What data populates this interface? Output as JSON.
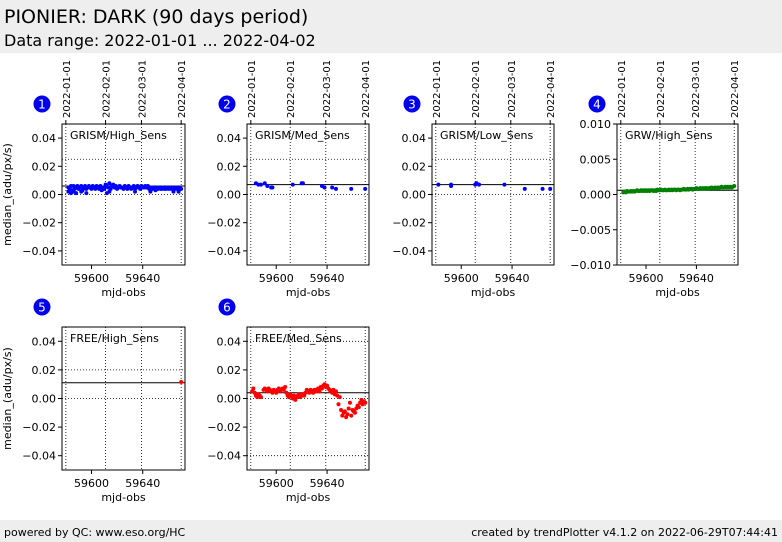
{
  "header": {
    "title": "PIONIER: DARK (90 days period)",
    "subtitle": "Data range: 2022-01-01 ... 2022-04-02"
  },
  "footer": {
    "left": "powered by QC: www.eso.org/HC",
    "right": "created by trendPlotter v4.1.2 on 2022-06-29T07:44:41"
  },
  "colors": {
    "badge": "#0000ee",
    "header_bg": "#eeeeee"
  },
  "chart_data": [
    {
      "type": "scatter",
      "badge": "1",
      "label": "GRISM/High_Sens",
      "color": "#0000ff",
      "xlabel": "mjd-obs",
      "ylabel": "median_(adu/px/s)",
      "xlim": [
        59577,
        59673
      ],
      "ylim": [
        -0.05,
        0.05
      ],
      "yticks": [
        -0.04,
        -0.02,
        0.0,
        0.02,
        0.04
      ],
      "yticklabels": [
        "−0.04",
        "−0.02",
        "0.00",
        "0.02",
        "0.04"
      ],
      "xticks": [
        59600,
        59640
      ],
      "xticklabels": [
        "59600",
        "59640"
      ],
      "dates": [
        "2022-01-01",
        "2022-02-01",
        "2022-03-01",
        "2022-04-01"
      ],
      "ref_line": 0.006,
      "dotted_lines": [
        0.025,
        0.0
      ],
      "x": [
        59582,
        59583,
        59584,
        59585,
        59586,
        59587,
        59588,
        59589,
        59590,
        59591,
        59592,
        59593,
        59594,
        59595,
        59596,
        59597,
        59598,
        59599,
        59600,
        59601,
        59602,
        59603,
        59604,
        59605,
        59606,
        59607,
        59608,
        59609,
        59610,
        59611,
        59612,
        59613,
        59614,
        59615,
        59616,
        59617,
        59618,
        59619,
        59620,
        59621,
        59622,
        59623,
        59624,
        59625,
        59626,
        59627,
        59628,
        59629,
        59630,
        59631,
        59632,
        59633,
        59634,
        59635,
        59636,
        59637,
        59638,
        59639,
        59640,
        59641,
        59642,
        59643,
        59644,
        59645,
        59646,
        59647,
        59648,
        59649,
        59650,
        59651,
        59652,
        59653,
        59654,
        59655,
        59656,
        59657,
        59658,
        59659,
        59660,
        59661,
        59662,
        59663,
        59664,
        59665,
        59666,
        59667,
        59668,
        59669,
        59670,
        59582,
        59584,
        59586,
        59588,
        59592,
        59596,
        59612,
        59614,
        59634,
        59646,
        59664,
        59668
      ],
      "y": [
        0.005,
        0.004,
        0.006,
        0.003,
        0.006,
        0.004,
        0.005,
        0.006,
        0.004,
        0.005,
        0.006,
        0.003,
        0.005,
        0.006,
        0.004,
        0.005,
        0.006,
        0.005,
        0.004,
        0.006,
        0.005,
        0.004,
        0.006,
        0.005,
        0.004,
        0.006,
        0.003,
        0.005,
        0.004,
        0.007,
        0.006,
        0.005,
        0.008,
        0.004,
        0.006,
        0.007,
        0.005,
        0.006,
        0.004,
        0.005,
        0.006,
        0.005,
        0.005,
        0.004,
        0.006,
        0.005,
        0.004,
        0.006,
        0.005,
        0.004,
        0.005,
        0.006,
        0.004,
        0.005,
        0.006,
        0.005,
        0.004,
        0.006,
        0.005,
        0.005,
        0.006,
        0.005,
        0.006,
        0.004,
        0.005,
        0.005,
        0.004,
        0.005,
        0.003,
        0.005,
        0.004,
        0.005,
        0.004,
        0.004,
        0.005,
        0.004,
        0.004,
        0.005,
        0.004,
        0.005,
        0.004,
        0.005,
        0.004,
        0.004,
        0.005,
        0.004,
        0.003,
        0.005,
        0.004,
        0.002,
        0.001,
        0.002,
        0.001,
        0.002,
        0.001,
        0.001,
        0.002,
        0.002,
        0.002,
        0.002,
        0.002
      ]
    },
    {
      "type": "scatter",
      "badge": "2",
      "label": "GRISM/Med_Sens",
      "color": "#0000ff",
      "xlabel": "mjd-obs",
      "ylabel": "",
      "xlim": [
        59577,
        59673
      ],
      "ylim": [
        -0.05,
        0.05
      ],
      "yticks": [
        -0.04,
        -0.02,
        0.0,
        0.02,
        0.04
      ],
      "yticklabels": [
        "−0.04",
        "−0.02",
        "0.00",
        "0.02",
        "0.04"
      ],
      "xticks": [
        59600,
        59640
      ],
      "xticklabels": [
        "59600",
        "59640"
      ],
      "dates": [
        "2022-01-01",
        "2022-02-01",
        "2022-03-01",
        "2022-04-01"
      ],
      "ref_line": 0.007,
      "dotted_lines": [
        0.025,
        0.0
      ],
      "x": [
        59584,
        59586,
        59588,
        59591,
        59593,
        59596,
        59597,
        59613,
        59620,
        59621,
        59636,
        59638,
        59644,
        59647,
        59659,
        59670
      ],
      "y": [
        0.008,
        0.007,
        0.007,
        0.008,
        0.006,
        0.005,
        0.005,
        0.007,
        0.008,
        0.008,
        0.006,
        0.005,
        0.005,
        0.004,
        0.004,
        0.004
      ]
    },
    {
      "type": "scatter",
      "badge": "3",
      "label": "GRISM/Low_Sens",
      "color": "#0000ff",
      "xlabel": "mjd-obs",
      "ylabel": "",
      "xlim": [
        59577,
        59673
      ],
      "ylim": [
        -0.05,
        0.05
      ],
      "yticks": [
        -0.04,
        -0.02,
        0.0,
        0.02,
        0.04
      ],
      "yticklabels": [
        "−0.04",
        "−0.02",
        "0.00",
        "0.02",
        "0.04"
      ],
      "xticks": [
        59600,
        59640
      ],
      "xticklabels": [
        "59600",
        "59640"
      ],
      "dates": [
        "2022-01-01",
        "2022-02-01",
        "2022-03-01",
        "2022-04-01"
      ],
      "ref_line": 0.007,
      "dotted_lines": [
        0.025,
        0.0
      ],
      "x": [
        59582,
        59592,
        59592,
        59611,
        59612,
        59614,
        59634,
        59650,
        59664,
        59670
      ],
      "y": [
        0.007,
        0.007,
        0.006,
        0.007,
        0.008,
        0.007,
        0.007,
        0.004,
        0.004,
        0.004
      ]
    },
    {
      "type": "scatter",
      "badge": "4",
      "label": "GRW/High_Sens",
      "color": "#008000",
      "xlabel": "mjd-obs",
      "ylabel": "",
      "xlim": [
        59577,
        59673
      ],
      "ylim": [
        -0.01,
        0.01
      ],
      "yticks": [
        -0.01,
        -0.005,
        0.0,
        0.005,
        0.01
      ],
      "yticklabels": [
        "−0.010",
        "−0.005",
        "0.000",
        "0.005",
        "0.010"
      ],
      "xticks": [
        59600,
        59640
      ],
      "xticklabels": [
        "59600",
        "59640"
      ],
      "dates": [
        "2022-01-01",
        "2022-02-01",
        "2022-03-01",
        "2022-04-01"
      ],
      "ref_line": 0.0006,
      "dotted_lines": [],
      "x": [
        59582,
        59583,
        59584,
        59585,
        59586,
        59587,
        59588,
        59589,
        59590,
        59591,
        59592,
        59593,
        59594,
        59595,
        59596,
        59597,
        59598,
        59599,
        59600,
        59601,
        59602,
        59603,
        59604,
        59605,
        59606,
        59607,
        59608,
        59609,
        59610,
        59611,
        59612,
        59613,
        59614,
        59615,
        59616,
        59617,
        59618,
        59619,
        59620,
        59621,
        59622,
        59623,
        59624,
        59625,
        59626,
        59627,
        59628,
        59629,
        59630,
        59631,
        59632,
        59633,
        59634,
        59635,
        59636,
        59637,
        59638,
        59639,
        59640,
        59641,
        59642,
        59643,
        59644,
        59645,
        59646,
        59647,
        59648,
        59649,
        59650,
        59651,
        59652,
        59653,
        59654,
        59655,
        59656,
        59657,
        59658,
        59659,
        59660,
        59661,
        59662,
        59663,
        59664,
        59665,
        59666,
        59667,
        59668,
        59669,
        59670
      ],
      "y": [
        0.0003,
        0.0004,
        0.0003,
        0.0005,
        0.0004,
        0.0004,
        0.0005,
        0.0004,
        0.0005,
        0.0004,
        0.0005,
        0.0006,
        0.0005,
        0.0005,
        0.0006,
        0.0005,
        0.0006,
        0.0005,
        0.0006,
        0.0005,
        0.0006,
        0.0005,
        0.0006,
        0.0006,
        0.0005,
        0.0006,
        0.0005,
        0.0007,
        0.0006,
        0.0006,
        0.0007,
        0.0006,
        0.0006,
        0.0007,
        0.0006,
        0.0006,
        0.0007,
        0.0006,
        0.0007,
        0.0006,
        0.0007,
        0.0007,
        0.0006,
        0.0007,
        0.0007,
        0.0006,
        0.0007,
        0.0007,
        0.0008,
        0.0007,
        0.0007,
        0.0008,
        0.0007,
        0.0008,
        0.0008,
        0.0007,
        0.0008,
        0.0008,
        0.0009,
        0.0008,
        0.0008,
        0.0009,
        0.0008,
        0.0009,
        0.0008,
        0.0009,
        0.0009,
        0.0008,
        0.0009,
        0.0009,
        0.001,
        0.0009,
        0.0009,
        0.001,
        0.0009,
        0.001,
        0.0009,
        0.001,
        0.0011,
        0.001,
        0.001,
        0.0011,
        0.001,
        0.0011,
        0.001,
        0.0011,
        0.001,
        0.0011,
        0.0012
      ]
    },
    {
      "type": "scatter",
      "badge": "5",
      "label": "FREE/High_Sens",
      "color": "#ff0000",
      "xlabel": "mjd-obs",
      "ylabel": "median_(adu/px/s)",
      "xlim": [
        59577,
        59673
      ],
      "ylim": [
        -0.05,
        0.05
      ],
      "yticks": [
        -0.04,
        -0.02,
        0.0,
        0.02,
        0.04
      ],
      "yticklabels": [
        "−0.04",
        "−0.02",
        "0.00",
        "0.02",
        "0.04"
      ],
      "xticks": [
        59600,
        59640
      ],
      "xticklabels": [
        "59600",
        "59640"
      ],
      "ref_line": 0.011,
      "dotted_lines": [
        0.02,
        0.0
      ],
      "x": [
        59670
      ],
      "y": [
        0.0115
      ]
    },
    {
      "type": "scatter",
      "badge": "6",
      "label": "FREE/Med_Sens",
      "color": "#ff0000",
      "xlabel": "mjd-obs",
      "ylabel": "",
      "xlim": [
        59577,
        59673
      ],
      "ylim": [
        -0.05,
        0.05
      ],
      "yticks": [
        -0.04,
        -0.02,
        0.0,
        0.02,
        0.04
      ],
      "yticklabels": [
        "−0.04",
        "−0.02",
        "0.00",
        "0.02",
        "0.04"
      ],
      "xticks": [
        59600,
        59640
      ],
      "xticklabels": [
        "59600",
        "59640"
      ],
      "ref_line": 0.004,
      "dotted_lines": [
        0.04,
        0.0,
        -0.04
      ],
      "x": [
        59581,
        59582,
        59583,
        59584,
        59585,
        59586,
        59587,
        59588,
        59590,
        59591,
        59592,
        59593,
        59594,
        59595,
        59596,
        59597,
        59598,
        59599,
        59600,
        59601,
        59602,
        59603,
        59604,
        59605,
        59606,
        59607,
        59608,
        59609,
        59610,
        59611,
        59612,
        59613,
        59614,
        59615,
        59616,
        59617,
        59618,
        59619,
        59620,
        59621,
        59622,
        59623,
        59624,
        59625,
        59626,
        59627,
        59628,
        59629,
        59630,
        59631,
        59632,
        59633,
        59634,
        59635,
        59636,
        59637,
        59638,
        59639,
        59640,
        59641,
        59642,
        59643,
        59644,
        59645,
        59646,
        59647,
        59648,
        59649,
        59650,
        59651,
        59652,
        59653,
        59654,
        59655,
        59656,
        59657,
        59658,
        59659,
        59660,
        59661,
        59662,
        59663,
        59664,
        59665,
        59666,
        59667,
        59668,
        59669,
        59670
      ],
      "y": [
        0.005,
        0.007,
        0.004,
        0.002,
        0.001,
        0.003,
        0.002,
        0.001,
        0.006,
        0.007,
        0.006,
        0.005,
        0.007,
        0.006,
        0.005,
        0.004,
        0.006,
        0.005,
        0.004,
        0.006,
        0.007,
        0.005,
        0.006,
        0.007,
        0.006,
        0.008,
        0.004,
        0.002,
        0.001,
        0.003,
        0.002,
        0.0,
        0.002,
        -0.001,
        0.001,
        0.002,
        0.003,
        0.001,
        0.002,
        0.003,
        0.002,
        0.004,
        0.006,
        0.005,
        0.004,
        0.006,
        0.005,
        0.004,
        0.006,
        0.005,
        0.006,
        0.007,
        0.005,
        0.008,
        0.007,
        0.009,
        0.01,
        0.008,
        0.009,
        0.007,
        0.006,
        0.005,
        0.004,
        0.006,
        0.003,
        0.005,
        0.002,
        -0.004,
        0.001,
        -0.008,
        -0.012,
        -0.01,
        -0.009,
        -0.013,
        -0.011,
        -0.007,
        -0.003,
        -0.012,
        -0.008,
        -0.009,
        -0.01,
        -0.007,
        -0.005,
        -0.006,
        -0.003,
        -0.001,
        -0.004,
        -0.002,
        -0.003
      ]
    }
  ]
}
